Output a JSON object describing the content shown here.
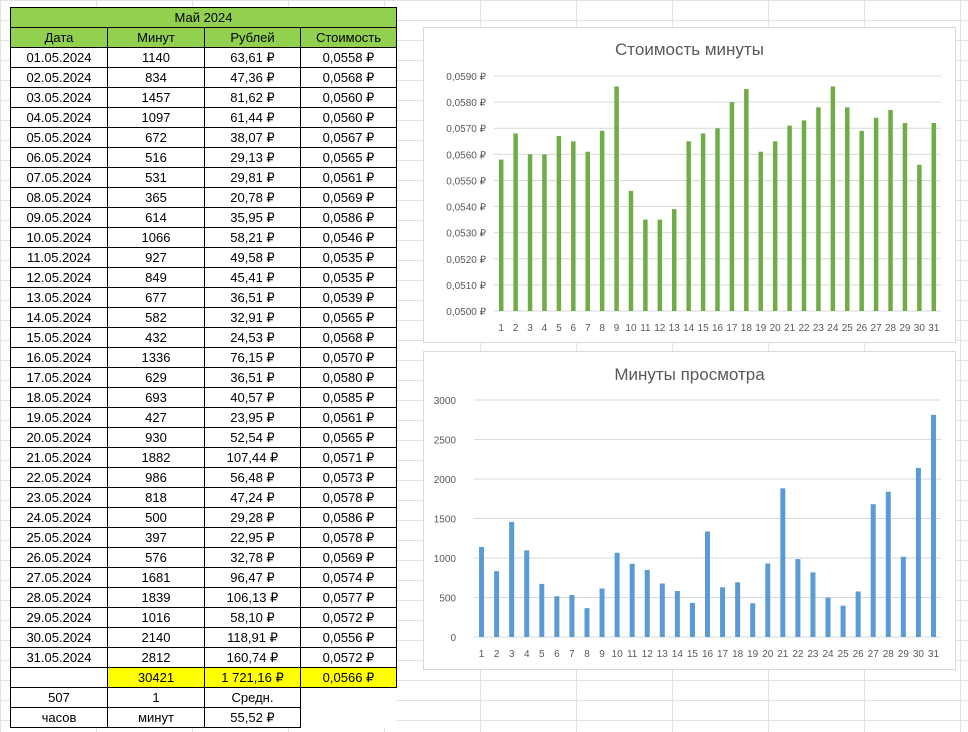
{
  "sheet": {
    "title": "Май 2024",
    "headers": [
      "Дата",
      "Минут",
      "Рублей",
      "Стоимость"
    ],
    "rows": [
      [
        "01.05.2024",
        "1140",
        "63,61 ₽",
        "0,0558 ₽"
      ],
      [
        "02.05.2024",
        "834",
        "47,36 ₽",
        "0,0568 ₽"
      ],
      [
        "03.05.2024",
        "1457",
        "81,62 ₽",
        "0,0560 ₽"
      ],
      [
        "04.05.2024",
        "1097",
        "61,44 ₽",
        "0,0560 ₽"
      ],
      [
        "05.05.2024",
        "672",
        "38,07 ₽",
        "0,0567 ₽"
      ],
      [
        "06.05.2024",
        "516",
        "29,13 ₽",
        "0,0565 ₽"
      ],
      [
        "07.05.2024",
        "531",
        "29,81 ₽",
        "0,0561 ₽"
      ],
      [
        "08.05.2024",
        "365",
        "20,78 ₽",
        "0,0569 ₽"
      ],
      [
        "09.05.2024",
        "614",
        "35,95 ₽",
        "0,0586 ₽"
      ],
      [
        "10.05.2024",
        "1066",
        "58,21 ₽",
        "0,0546 ₽"
      ],
      [
        "11.05.2024",
        "927",
        "49,58 ₽",
        "0,0535 ₽"
      ],
      [
        "12.05.2024",
        "849",
        "45,41 ₽",
        "0,0535 ₽"
      ],
      [
        "13.05.2024",
        "677",
        "36,51 ₽",
        "0,0539 ₽"
      ],
      [
        "14.05.2024",
        "582",
        "32,91 ₽",
        "0,0565 ₽"
      ],
      [
        "15.05.2024",
        "432",
        "24,53 ₽",
        "0,0568 ₽"
      ],
      [
        "16.05.2024",
        "1336",
        "76,15 ₽",
        "0,0570 ₽"
      ],
      [
        "17.05.2024",
        "629",
        "36,51 ₽",
        "0,0580 ₽"
      ],
      [
        "18.05.2024",
        "693",
        "40,57 ₽",
        "0,0585 ₽"
      ],
      [
        "19.05.2024",
        "427",
        "23,95 ₽",
        "0,0561 ₽"
      ],
      [
        "20.05.2024",
        "930",
        "52,54 ₽",
        "0,0565 ₽"
      ],
      [
        "21.05.2024",
        "1882",
        "107,44 ₽",
        "0,0571 ₽"
      ],
      [
        "22.05.2024",
        "986",
        "56,48 ₽",
        "0,0573 ₽"
      ],
      [
        "23.05.2024",
        "818",
        "47,24 ₽",
        "0,0578 ₽"
      ],
      [
        "24.05.2024",
        "500",
        "29,28 ₽",
        "0,0586 ₽"
      ],
      [
        "25.05.2024",
        "397",
        "22,95 ₽",
        "0,0578 ₽"
      ],
      [
        "26.05.2024",
        "576",
        "32,78 ₽",
        "0,0569 ₽"
      ],
      [
        "27.05.2024",
        "1681",
        "96,47 ₽",
        "0,0574 ₽"
      ],
      [
        "28.05.2024",
        "1839",
        "106,13 ₽",
        "0,0577 ₽"
      ],
      [
        "29.05.2024",
        "1016",
        "58,10 ₽",
        "0,0572 ₽"
      ],
      [
        "30.05.2024",
        "2140",
        "118,91 ₽",
        "0,0556 ₽"
      ],
      [
        "31.05.2024",
        "2812",
        "160,74 ₽",
        "0,0572 ₽"
      ]
    ],
    "totals": {
      "minutes": "30421",
      "rubles": "1 721,16 ₽",
      "cost": "0,0566 ₽"
    },
    "extra1": {
      "a": "507",
      "b": "1",
      "c": "Средн."
    },
    "extra2": {
      "a": "часов",
      "b": "минут",
      "c": "55,52 ₽"
    }
  },
  "colors": {
    "header_green": "#92d050",
    "total_yellow": "#ffff00",
    "bar_green": "#70ad47",
    "bar_blue": "#5b9bd5"
  },
  "chart_data": [
    {
      "type": "bar",
      "title": "Стоимость минуты",
      "categories": [
        "1",
        "2",
        "3",
        "4",
        "5",
        "6",
        "7",
        "8",
        "9",
        "10",
        "11",
        "12",
        "13",
        "14",
        "15",
        "16",
        "17",
        "18",
        "19",
        "20",
        "21",
        "22",
        "23",
        "24",
        "25",
        "26",
        "27",
        "28",
        "29",
        "30",
        "31"
      ],
      "values": [
        0.0558,
        0.0568,
        0.056,
        0.056,
        0.0567,
        0.0565,
        0.0561,
        0.0569,
        0.0586,
        0.0546,
        0.0535,
        0.0535,
        0.0539,
        0.0565,
        0.0568,
        0.057,
        0.058,
        0.0585,
        0.0561,
        0.0565,
        0.0571,
        0.0573,
        0.0578,
        0.0586,
        0.0578,
        0.0569,
        0.0574,
        0.0577,
        0.0572,
        0.0556,
        0.0572
      ],
      "ylim": [
        0.05,
        0.059
      ],
      "yticks": [
        "0,0500 ₽",
        "0,0510 ₽",
        "0,0520 ₽",
        "0,0530 ₽",
        "0,0540 ₽",
        "0,0550 ₽",
        "0,0560 ₽",
        "0,0570 ₽",
        "0,0580 ₽",
        "0,0590 ₽"
      ],
      "ytick_values": [
        0.05,
        0.051,
        0.052,
        0.053,
        0.054,
        0.055,
        0.056,
        0.057,
        0.058,
        0.059
      ],
      "color": "#70ad47"
    },
    {
      "type": "bar",
      "title": "Минуты просмотра",
      "categories": [
        "1",
        "2",
        "3",
        "4",
        "5",
        "6",
        "7",
        "8",
        "9",
        "10",
        "11",
        "12",
        "13",
        "14",
        "15",
        "16",
        "17",
        "18",
        "19",
        "20",
        "21",
        "22",
        "23",
        "24",
        "25",
        "26",
        "27",
        "28",
        "29",
        "30",
        "31"
      ],
      "values": [
        1140,
        834,
        1457,
        1097,
        672,
        516,
        531,
        365,
        614,
        1066,
        927,
        849,
        677,
        582,
        432,
        1336,
        629,
        693,
        427,
        930,
        1882,
        986,
        818,
        500,
        397,
        576,
        1681,
        1839,
        1016,
        2140,
        2812
      ],
      "ylim": [
        0,
        3000
      ],
      "yticks": [
        "0",
        "500",
        "1000",
        "1500",
        "2000",
        "2500",
        "3000"
      ],
      "ytick_values": [
        0,
        500,
        1000,
        1500,
        2000,
        2500,
        3000
      ],
      "color": "#5b9bd5"
    }
  ]
}
